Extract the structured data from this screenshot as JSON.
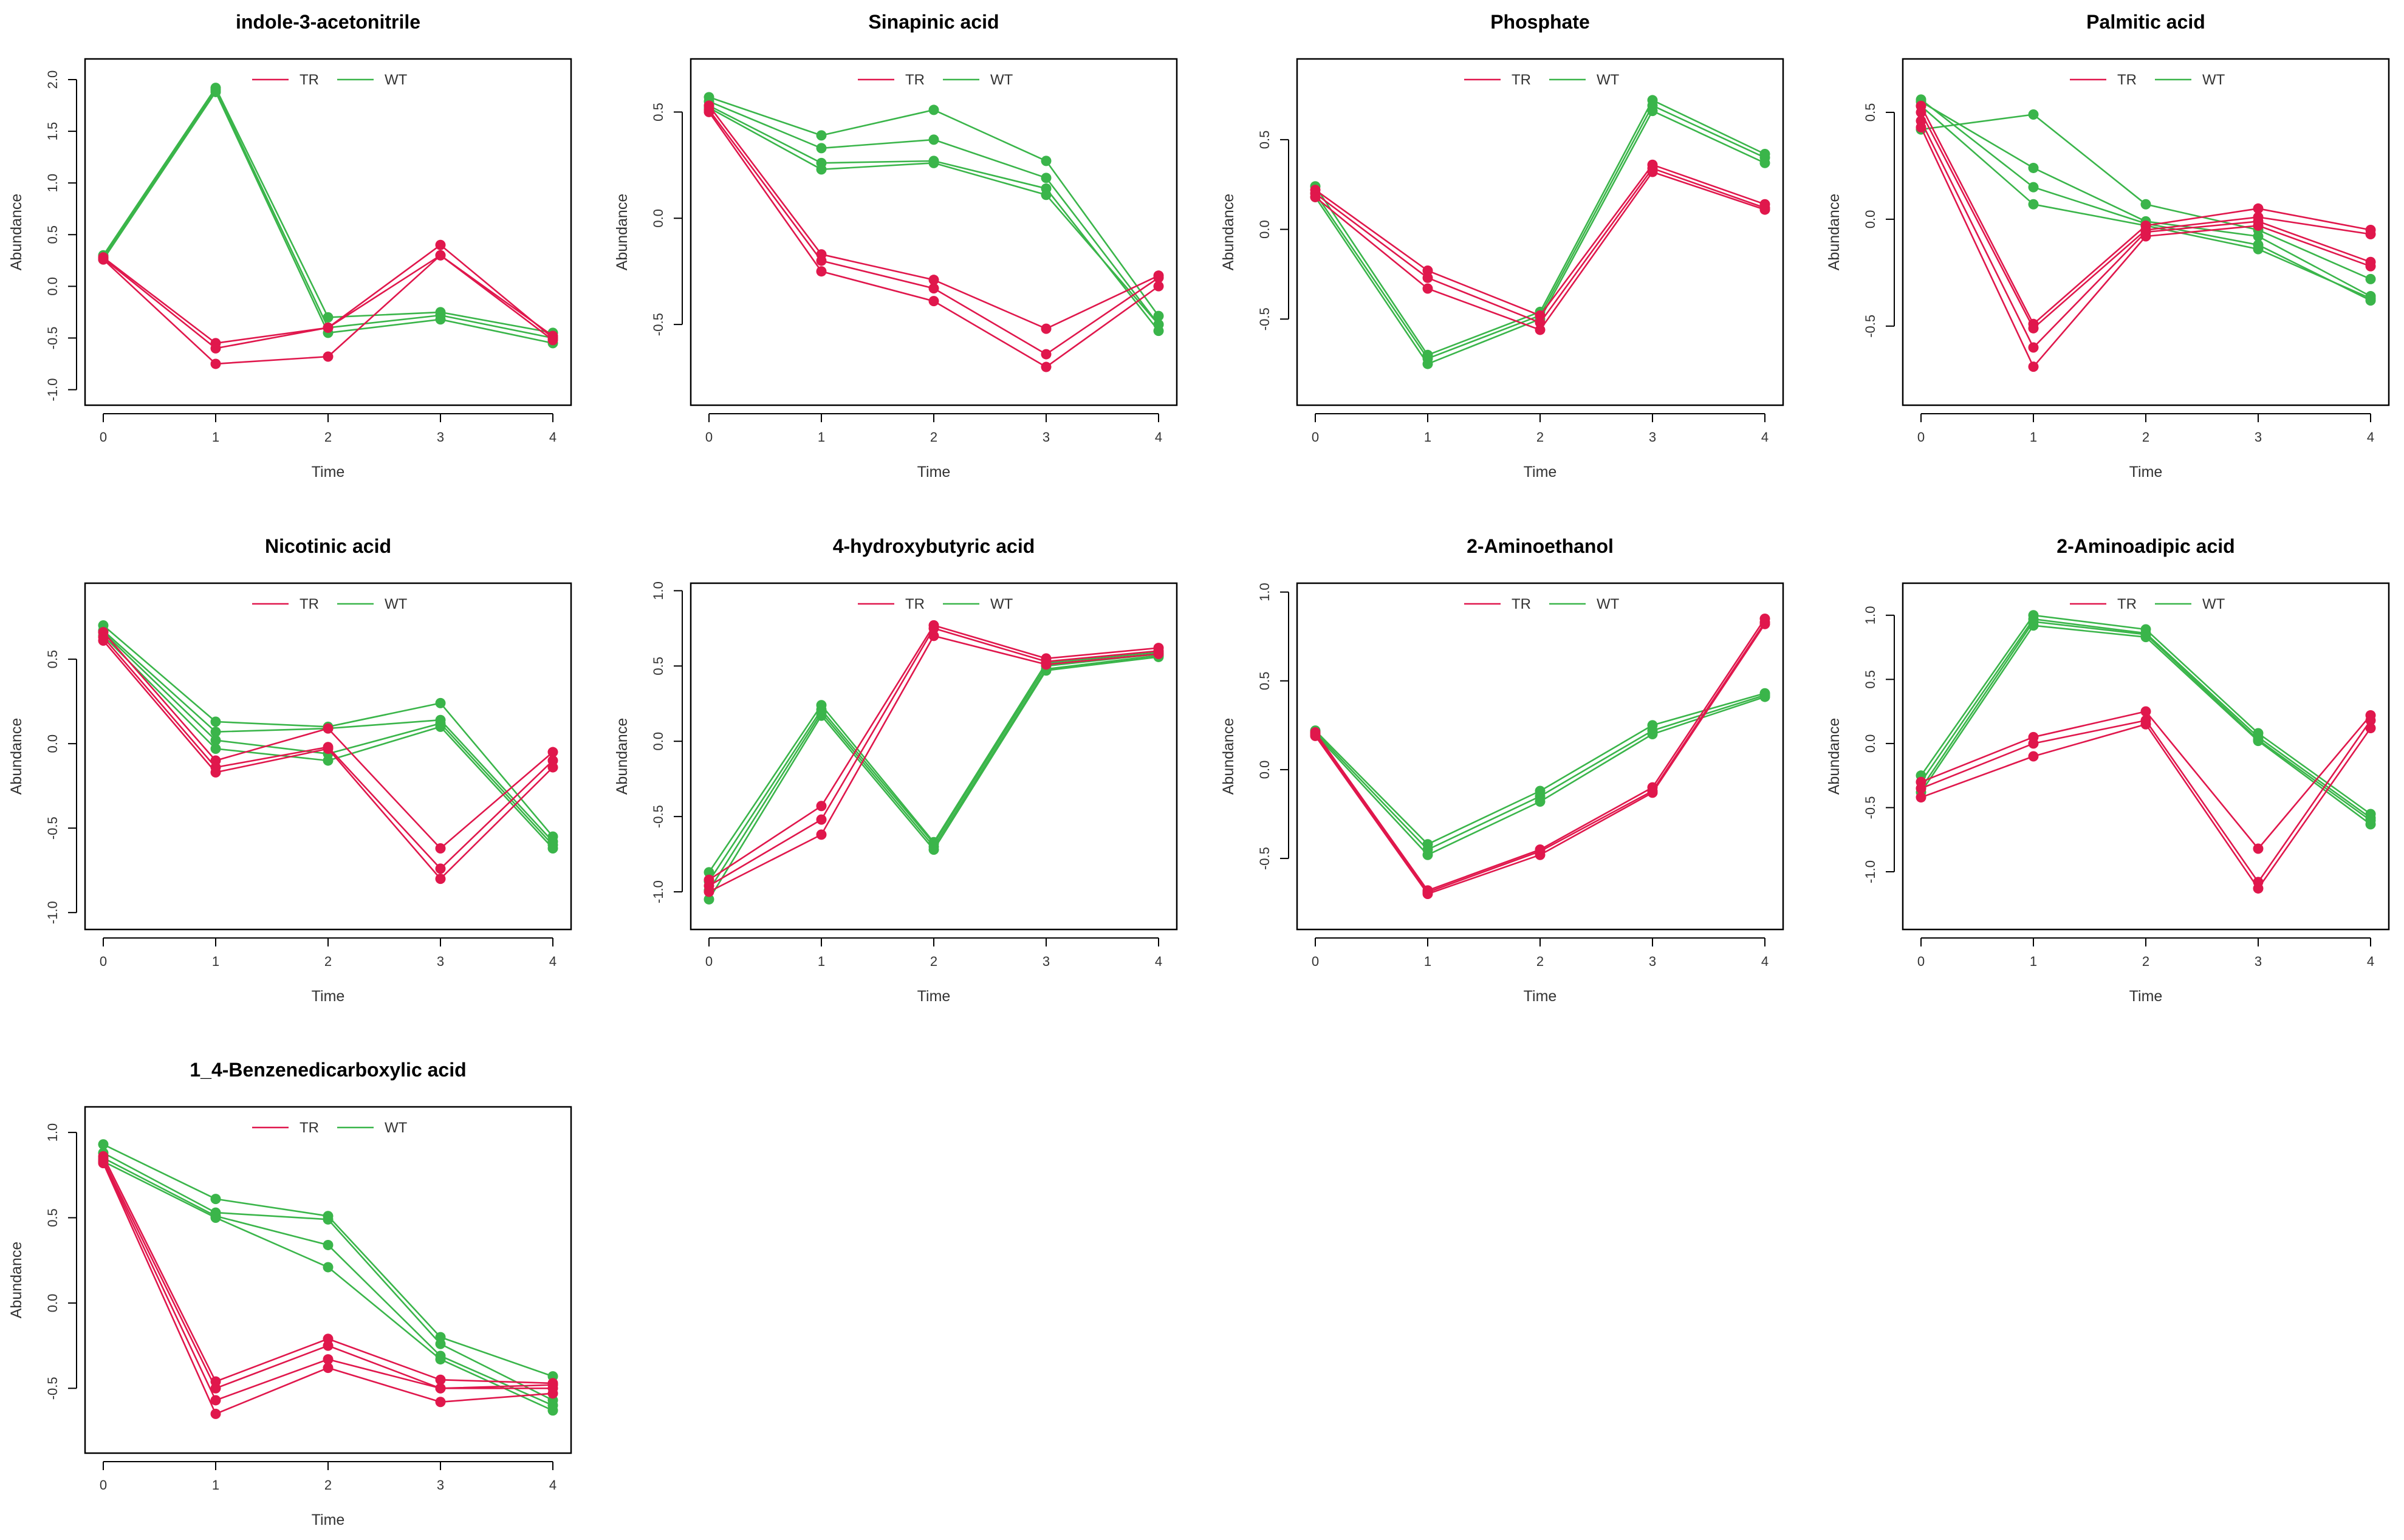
{
  "chart_data": [
    {
      "type": "line",
      "title": "indole-3-acetonitrile",
      "xlabel": "Time",
      "ylabel": "Abundance",
      "x": [
        0,
        1,
        2,
        3,
        4
      ],
      "xticks": [
        "0",
        "1",
        "2",
        "3",
        "4"
      ],
      "ylim": [
        -1.15,
        2.2
      ],
      "yticks": [
        -1.0,
        -0.5,
        0.0,
        0.5,
        1.0,
        1.5,
        2.0
      ],
      "yticklabels": [
        "-1.0",
        "-0.5",
        "0.0",
        "0.5",
        "1.0",
        "1.5",
        "2.0"
      ],
      "legend": [
        "TR",
        "WT"
      ],
      "series": [
        {
          "name": "TR",
          "replicate": 1,
          "values": [
            0.28,
            -0.55,
            -0.4,
            0.4,
            -0.5
          ]
        },
        {
          "name": "TR",
          "replicate": 2,
          "values": [
            0.27,
            -0.6,
            -0.4,
            0.3,
            -0.48
          ]
        },
        {
          "name": "TR",
          "replicate": 3,
          "values": [
            0.26,
            -0.75,
            -0.68,
            0.3,
            -0.52
          ]
        },
        {
          "name": "WT",
          "replicate": 1,
          "values": [
            0.3,
            1.92,
            -0.3,
            -0.25,
            -0.45
          ]
        },
        {
          "name": "WT",
          "replicate": 2,
          "values": [
            0.28,
            1.9,
            -0.4,
            -0.28,
            -0.5
          ]
        },
        {
          "name": "WT",
          "replicate": 3,
          "values": [
            0.26,
            1.88,
            -0.45,
            -0.32,
            -0.55
          ]
        }
      ]
    },
    {
      "type": "line",
      "title": "Sinapinic acid",
      "xlabel": "Time",
      "ylabel": "Abundance",
      "x": [
        0,
        1,
        2,
        3,
        4
      ],
      "xticks": [
        "0",
        "1",
        "2",
        "3",
        "4"
      ],
      "ylim": [
        -0.88,
        0.75
      ],
      "yticks": [
        -0.5,
        0.0,
        0.5
      ],
      "yticklabels": [
        "-0.5",
        "0.0",
        "0.5"
      ],
      "legend": [
        "TR",
        "WT"
      ],
      "series": [
        {
          "name": "TR",
          "replicate": 1,
          "values": [
            0.53,
            -0.17,
            -0.29,
            -0.52,
            -0.27
          ]
        },
        {
          "name": "TR",
          "replicate": 2,
          "values": [
            0.51,
            -0.2,
            -0.33,
            -0.64,
            -0.28
          ]
        },
        {
          "name": "TR",
          "replicate": 3,
          "values": [
            0.5,
            -0.25,
            -0.39,
            -0.7,
            -0.32
          ]
        },
        {
          "name": "WT",
          "replicate": 1,
          "values": [
            0.57,
            0.39,
            0.51,
            0.27,
            -0.46
          ]
        },
        {
          "name": "WT",
          "replicate": 2,
          "values": [
            0.55,
            0.33,
            0.37,
            0.19,
            -0.5
          ]
        },
        {
          "name": "WT",
          "replicate": 3,
          "values": [
            0.53,
            0.26,
            0.27,
            0.14,
            -0.53
          ]
        },
        {
          "name": "WT",
          "replicate": 4,
          "values": [
            0.52,
            0.23,
            0.26,
            0.11,
            -0.5
          ]
        }
      ]
    },
    {
      "type": "line",
      "title": "Phosphate",
      "xlabel": "Time",
      "ylabel": "Abundance",
      "x": [
        0,
        1,
        2,
        3,
        4
      ],
      "xticks": [
        "0",
        "1",
        "2",
        "3",
        "4"
      ],
      "ylim": [
        -0.98,
        0.95
      ],
      "yticks": [
        -0.5,
        0.0,
        0.5
      ],
      "yticklabels": [
        "-0.5",
        "0.0",
        "0.5"
      ],
      "legend": [
        "TR",
        "WT"
      ],
      "series": [
        {
          "name": "TR",
          "replicate": 1,
          "values": [
            0.22,
            -0.23,
            -0.48,
            0.36,
            0.14
          ]
        },
        {
          "name": "TR",
          "replicate": 2,
          "values": [
            0.2,
            -0.27,
            -0.52,
            0.34,
            0.12
          ]
        },
        {
          "name": "TR",
          "replicate": 3,
          "values": [
            0.18,
            -0.33,
            -0.56,
            0.32,
            0.11
          ]
        },
        {
          "name": "WT",
          "replicate": 1,
          "values": [
            0.24,
            -0.7,
            -0.46,
            0.72,
            0.42
          ]
        },
        {
          "name": "WT",
          "replicate": 2,
          "values": [
            0.2,
            -0.72,
            -0.48,
            0.69,
            0.4
          ]
        },
        {
          "name": "WT",
          "replicate": 3,
          "values": [
            0.18,
            -0.75,
            -0.5,
            0.66,
            0.37
          ]
        }
      ]
    },
    {
      "type": "line",
      "title": "Palmitic acid",
      "xlabel": "Time",
      "ylabel": "Abundance",
      "x": [
        0,
        1,
        2,
        3,
        4
      ],
      "xticks": [
        "0",
        "1",
        "2",
        "3",
        "4"
      ],
      "ylim": [
        -0.87,
        0.75
      ],
      "yticks": [
        -0.5,
        0.0,
        0.5
      ],
      "yticklabels": [
        "-0.5",
        "0.0",
        "0.5"
      ],
      "legend": [
        "TR",
        "WT"
      ],
      "series": [
        {
          "name": "TR",
          "replicate": 1,
          "values": [
            0.53,
            -0.49,
            -0.03,
            0.05,
            -0.05
          ]
        },
        {
          "name": "TR",
          "replicate": 2,
          "values": [
            0.5,
            -0.51,
            -0.05,
            0.01,
            -0.07
          ]
        },
        {
          "name": "TR",
          "replicate": 3,
          "values": [
            0.46,
            -0.6,
            -0.06,
            -0.01,
            -0.2
          ]
        },
        {
          "name": "TR",
          "replicate": 4,
          "values": [
            0.43,
            -0.69,
            -0.08,
            -0.03,
            -0.22
          ]
        },
        {
          "name": "WT",
          "replicate": 1,
          "values": [
            0.42,
            0.49,
            0.07,
            -0.05,
            -0.28
          ]
        },
        {
          "name": "WT",
          "replicate": 2,
          "values": [
            0.55,
            0.24,
            -0.01,
            -0.08,
            -0.36
          ]
        },
        {
          "name": "WT",
          "replicate": 3,
          "values": [
            0.56,
            0.15,
            -0.02,
            -0.12,
            -0.38
          ]
        },
        {
          "name": "WT",
          "replicate": 4,
          "values": [
            0.53,
            0.07,
            -0.03,
            -0.14,
            -0.37
          ]
        }
      ]
    },
    {
      "type": "line",
      "title": "Nicotinic acid",
      "xlabel": "Time",
      "ylabel": "Abundance",
      "x": [
        0,
        1,
        2,
        3,
        4
      ],
      "xticks": [
        "0",
        "1",
        "2",
        "3",
        "4"
      ],
      "ylim": [
        -1.1,
        0.95
      ],
      "yticks": [
        -1.0,
        -0.5,
        0.0,
        0.5
      ],
      "yticklabels": [
        "-1.0",
        "-0.5",
        "0.0",
        "0.5"
      ],
      "legend": [
        "TR",
        "WT"
      ],
      "series": [
        {
          "name": "TR",
          "replicate": 1,
          "values": [
            0.66,
            -0.1,
            0.09,
            -0.62,
            -0.05
          ]
        },
        {
          "name": "TR",
          "replicate": 2,
          "values": [
            0.63,
            -0.14,
            -0.02,
            -0.74,
            -0.1
          ]
        },
        {
          "name": "TR",
          "replicate": 3,
          "values": [
            0.61,
            -0.17,
            -0.03,
            -0.8,
            -0.14
          ]
        },
        {
          "name": "WT",
          "replicate": 1,
          "values": [
            0.7,
            0.13,
            0.1,
            0.24,
            -0.55
          ]
        },
        {
          "name": "WT",
          "replicate": 2,
          "values": [
            0.67,
            0.07,
            0.09,
            0.14,
            -0.58
          ]
        },
        {
          "name": "WT",
          "replicate": 3,
          "values": [
            0.66,
            0.02,
            -0.06,
            0.12,
            -0.6
          ]
        },
        {
          "name": "WT",
          "replicate": 4,
          "values": [
            0.64,
            -0.03,
            -0.1,
            0.1,
            -0.62
          ]
        }
      ]
    },
    {
      "type": "line",
      "title": "4-hydroxybutyric acid",
      "xlabel": "Time",
      "ylabel": "Abundance",
      "x": [
        0,
        1,
        2,
        3,
        4
      ],
      "xticks": [
        "0",
        "1",
        "2",
        "3",
        "4"
      ],
      "ylim": [
        -1.25,
        1.05
      ],
      "yticks": [
        -1.0,
        -0.5,
        0.0,
        0.5,
        1.0
      ],
      "yticklabels": [
        "-1.0",
        "-0.5",
        "0.0",
        "0.5",
        "1.0"
      ],
      "legend": [
        "TR",
        "WT"
      ],
      "series": [
        {
          "name": "TR",
          "replicate": 1,
          "values": [
            -0.92,
            -0.43,
            0.77,
            0.55,
            0.62
          ]
        },
        {
          "name": "TR",
          "replicate": 2,
          "values": [
            -0.96,
            -0.52,
            0.75,
            0.53,
            0.6
          ]
        },
        {
          "name": "TR",
          "replicate": 3,
          "values": [
            -1.0,
            -0.62,
            0.7,
            0.51,
            0.58
          ]
        },
        {
          "name": "WT",
          "replicate": 1,
          "values": [
            -0.87,
            0.24,
            -0.67,
            0.52,
            0.59
          ]
        },
        {
          "name": "WT",
          "replicate": 2,
          "values": [
            -0.93,
            0.21,
            -0.68,
            0.5,
            0.58
          ]
        },
        {
          "name": "WT",
          "replicate": 3,
          "values": [
            -0.99,
            0.19,
            -0.7,
            0.48,
            0.57
          ]
        },
        {
          "name": "WT",
          "replicate": 4,
          "values": [
            -1.05,
            0.17,
            -0.72,
            0.47,
            0.56
          ]
        }
      ]
    },
    {
      "type": "line",
      "title": "2-Aminoethanol",
      "xlabel": "Time",
      "ylabel": "Abundance",
      "x": [
        0,
        1,
        2,
        3,
        4
      ],
      "xticks": [
        "0",
        "1",
        "2",
        "3",
        "4"
      ],
      "ylim": [
        -0.9,
        1.05
      ],
      "yticks": [
        -0.5,
        0.0,
        0.5,
        1.0
      ],
      "yticklabels": [
        "-0.5",
        "0.0",
        "0.5",
        "1.0"
      ],
      "legend": [
        "TR",
        "WT"
      ],
      "series": [
        {
          "name": "TR",
          "replicate": 1,
          "values": [
            0.21,
            -0.68,
            -0.45,
            -0.1,
            0.85
          ]
        },
        {
          "name": "TR",
          "replicate": 2,
          "values": [
            0.2,
            -0.69,
            -0.46,
            -0.12,
            0.83
          ]
        },
        {
          "name": "TR",
          "replicate": 3,
          "values": [
            0.19,
            -0.7,
            -0.48,
            -0.13,
            0.82
          ]
        },
        {
          "name": "WT",
          "replicate": 1,
          "values": [
            0.22,
            -0.42,
            -0.12,
            0.25,
            0.43
          ]
        },
        {
          "name": "WT",
          "replicate": 2,
          "values": [
            0.21,
            -0.45,
            -0.15,
            0.22,
            0.42
          ]
        },
        {
          "name": "WT",
          "replicate": 3,
          "values": [
            0.2,
            -0.48,
            -0.18,
            0.2,
            0.41
          ]
        }
      ]
    },
    {
      "type": "line",
      "title": "2-Aminoadipic acid",
      "xlabel": "Time",
      "ylabel": "Abundance",
      "x": [
        0,
        1,
        2,
        3,
        4
      ],
      "xticks": [
        "0",
        "1",
        "2",
        "3",
        "4"
      ],
      "ylim": [
        -1.45,
        1.25
      ],
      "yticks": [
        -1.0,
        -0.5,
        0.0,
        0.5,
        1.0
      ],
      "yticklabels": [
        "-1.0",
        "-0.5",
        "0.0",
        "0.5",
        "1.0"
      ],
      "legend": [
        "TR",
        "WT"
      ],
      "series": [
        {
          "name": "TR",
          "replicate": 1,
          "values": [
            -0.3,
            0.05,
            0.25,
            -0.82,
            0.22
          ]
        },
        {
          "name": "TR",
          "replicate": 2,
          "values": [
            -0.35,
            0.0,
            0.18,
            -1.08,
            0.18
          ]
        },
        {
          "name": "TR",
          "replicate": 3,
          "values": [
            -0.42,
            -0.1,
            0.15,
            -1.13,
            0.12
          ]
        },
        {
          "name": "WT",
          "replicate": 1,
          "values": [
            -0.25,
            1.0,
            0.89,
            0.08,
            -0.55
          ]
        },
        {
          "name": "WT",
          "replicate": 2,
          "values": [
            -0.3,
            0.97,
            0.86,
            0.05,
            -0.58
          ]
        },
        {
          "name": "WT",
          "replicate": 3,
          "values": [
            -0.35,
            0.95,
            0.85,
            0.03,
            -0.6
          ]
        },
        {
          "name": "WT",
          "replicate": 4,
          "values": [
            -0.38,
            0.92,
            0.83,
            0.02,
            -0.63
          ]
        }
      ]
    },
    {
      "type": "line",
      "title": "1_4-Benzenedicarboxylic acid",
      "xlabel": "Time",
      "ylabel": "Abundance",
      "x": [
        0,
        1,
        2,
        3,
        4
      ],
      "xticks": [
        "0",
        "1",
        "2",
        "3",
        "4"
      ],
      "ylim": [
        -0.88,
        1.15
      ],
      "yticks": [
        -0.5,
        0.0,
        0.5,
        1.0
      ],
      "yticklabels": [
        "-0.5",
        "0.0",
        "0.5",
        "1.0"
      ],
      "legend": [
        "TR",
        "WT"
      ],
      "series": [
        {
          "name": "TR",
          "replicate": 1,
          "values": [
            0.86,
            -0.46,
            -0.21,
            -0.45,
            -0.47
          ]
        },
        {
          "name": "TR",
          "replicate": 2,
          "values": [
            0.84,
            -0.5,
            -0.25,
            -0.5,
            -0.48
          ]
        },
        {
          "name": "TR",
          "replicate": 3,
          "values": [
            0.83,
            -0.57,
            -0.33,
            -0.5,
            -0.5
          ]
        },
        {
          "name": "TR",
          "replicate": 4,
          "values": [
            0.82,
            -0.65,
            -0.38,
            -0.58,
            -0.53
          ]
        },
        {
          "name": "WT",
          "replicate": 1,
          "values": [
            0.93,
            0.61,
            0.51,
            -0.2,
            -0.43
          ]
        },
        {
          "name": "WT",
          "replicate": 2,
          "values": [
            0.88,
            0.53,
            0.49,
            -0.24,
            -0.57
          ]
        },
        {
          "name": "WT",
          "replicate": 3,
          "values": [
            0.85,
            0.51,
            0.34,
            -0.31,
            -0.6
          ]
        },
        {
          "name": "WT",
          "replicate": 4,
          "values": [
            0.83,
            0.5,
            0.21,
            -0.33,
            -0.63
          ]
        }
      ]
    }
  ],
  "colors": {
    "TR": "#e0174c",
    "WT": "#3ab54a"
  }
}
